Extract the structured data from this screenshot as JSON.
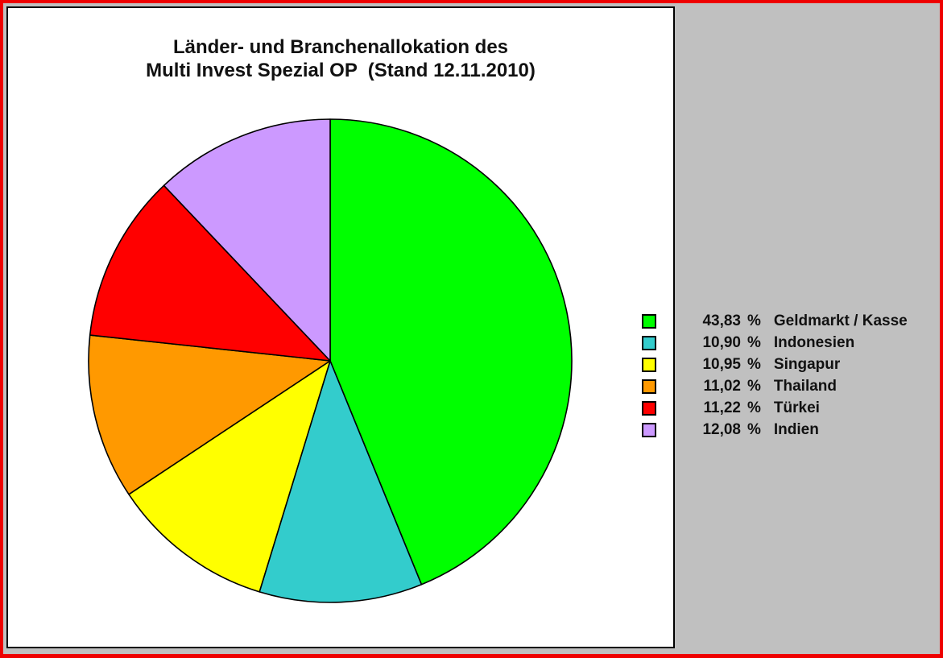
{
  "title": {
    "line1": "Länder- und Branchenallokation des",
    "line2": "Multi Invest Spezial OP  (Stand 12.11.2010)"
  },
  "chart_data": {
    "type": "pie",
    "title": "Länder- und Branchenallokation des Multi Invest Spezial OP (Stand 12.11.2010)",
    "start_angle_deg": -90,
    "direction": "clockwise",
    "percent_sign": "%",
    "legend_position": "right",
    "slices": [
      {
        "label": "Geldmarkt / Kasse",
        "value_pct": 43.83,
        "display_value": "43,83",
        "color": "#00FF00"
      },
      {
        "label": "Indonesien",
        "value_pct": 10.9,
        "display_value": "10,90",
        "color": "#33CCCC"
      },
      {
        "label": "Singapur",
        "value_pct": 10.95,
        "display_value": "10,95",
        "color": "#FFFF00"
      },
      {
        "label": "Thailand",
        "value_pct": 11.02,
        "display_value": "11,02",
        "color": "#FF9900"
      },
      {
        "label": "Türkei",
        "value_pct": 11.22,
        "display_value": "11,22",
        "color": "#FF0000"
      },
      {
        "label": "Indien",
        "value_pct": 12.08,
        "display_value": "12,08",
        "color": "#CC99FF"
      }
    ]
  },
  "colors": {
    "frame_border": "#EE0000",
    "background": "#C0C0C0",
    "panel_background": "#FFFFFF",
    "outline": "#000000",
    "text": "#111111"
  }
}
